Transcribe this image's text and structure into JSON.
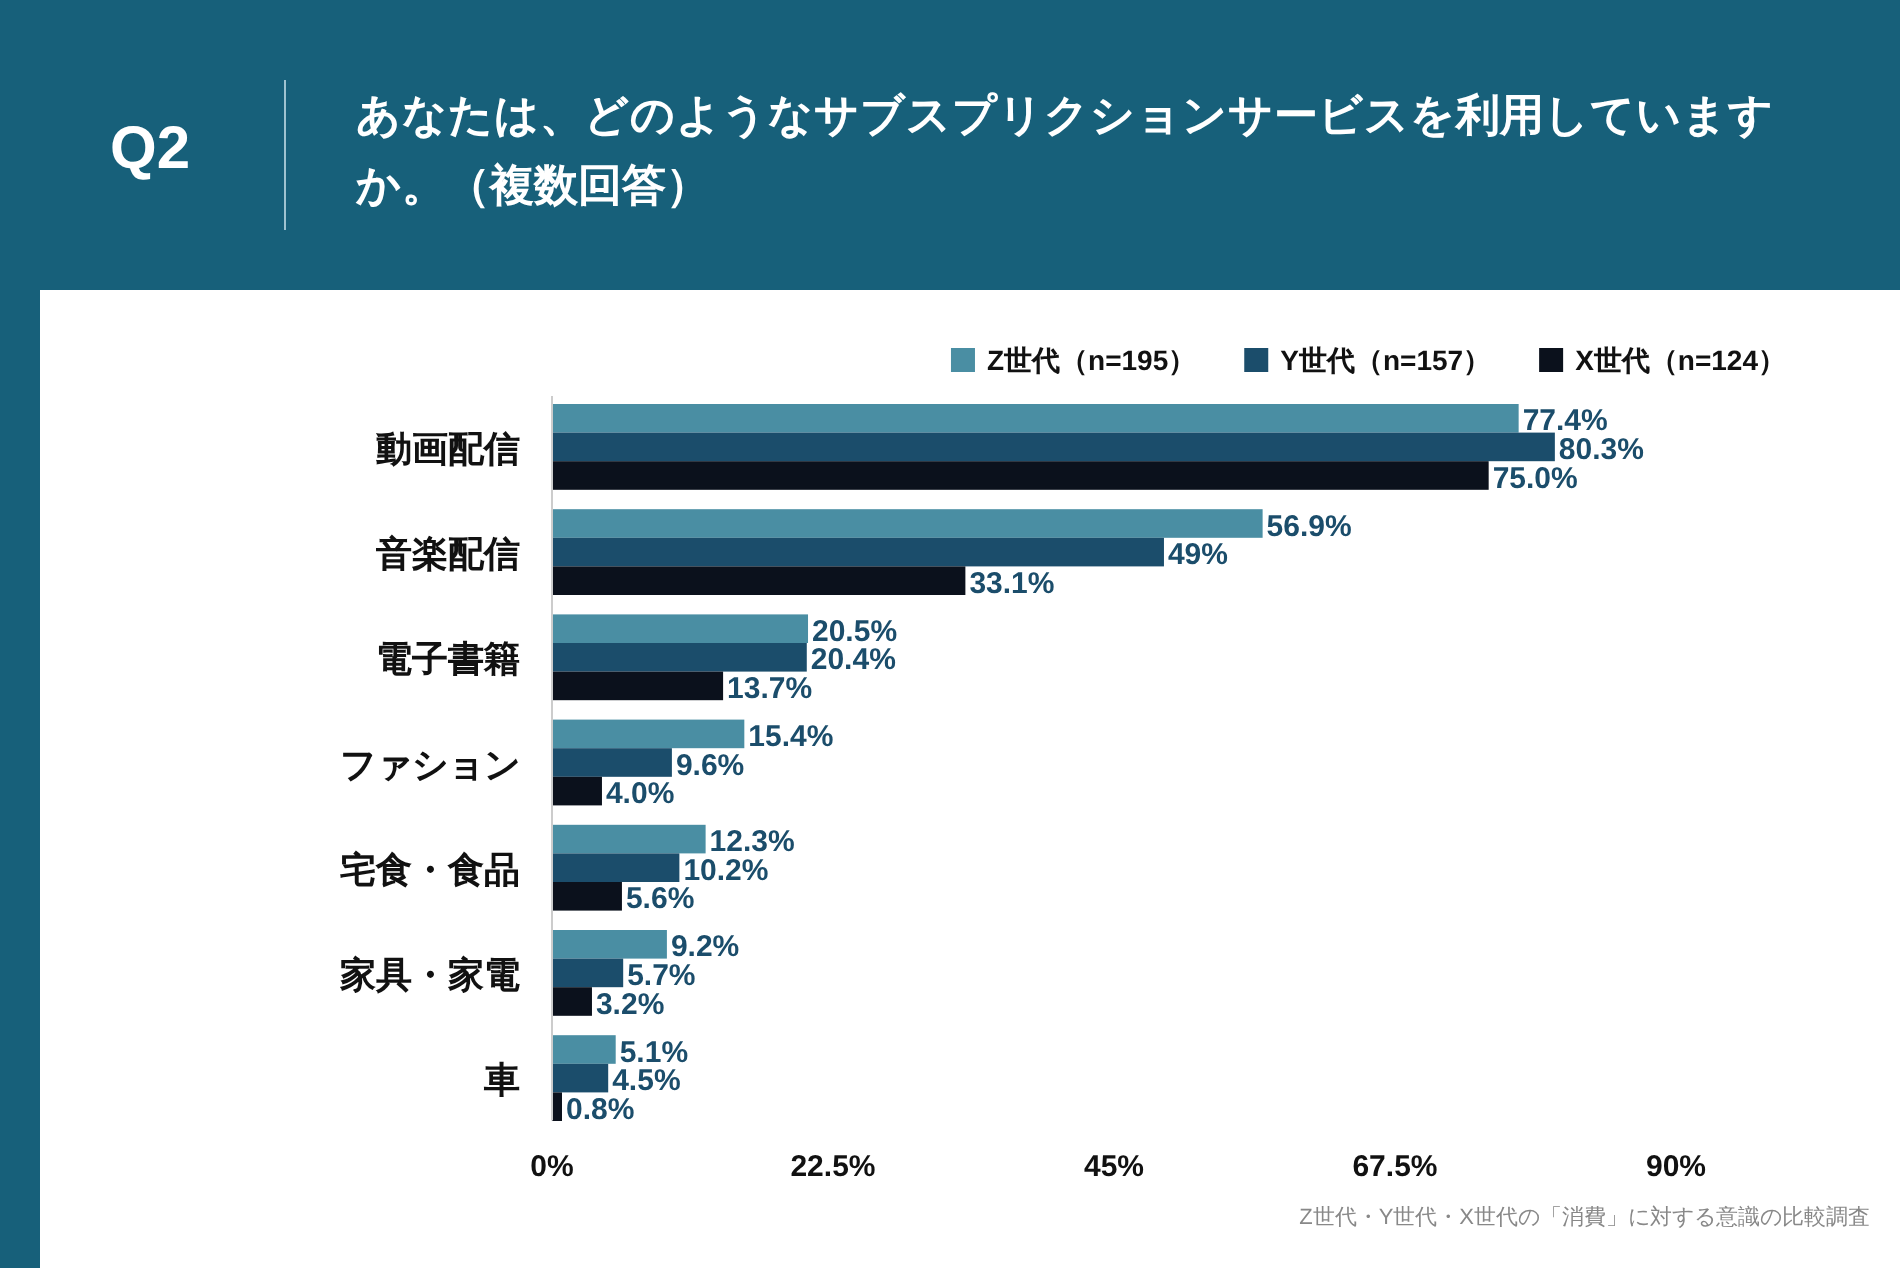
{
  "chart_data": {
    "type": "bar",
    "orientation": "horizontal",
    "title": "あなたは、どのようなサブスプリクションサービスを利用していますか。（複数回答）",
    "categories": [
      "動画配信",
      "音楽配信",
      "電子書籍",
      "ファション",
      "宅食・食品",
      "家具・家電",
      "車"
    ],
    "series": [
      {
        "name": "Z世代（n=195）",
        "color": "#4a8ea3",
        "values": [
          77.4,
          56.9,
          20.5,
          15.4,
          12.3,
          9.2,
          5.1
        ],
        "value_labels": [
          "77.4%",
          "56.9%",
          "20.5%",
          "15.4%",
          "12.3%",
          "9.2%",
          "5.1%"
        ]
      },
      {
        "name": "Y世代（n=157）",
        "color": "#1b4d6b",
        "values": [
          80.3,
          49,
          20.4,
          9.6,
          10.2,
          5.7,
          4.5
        ],
        "value_labels": [
          "80.3%",
          "49%",
          "20.4%",
          "9.6%",
          "10.2%",
          "5.7%",
          "4.5%"
        ]
      },
      {
        "name": "X世代（n=124）",
        "color": "#0b111c",
        "values": [
          75.0,
          33.1,
          13.7,
          4.0,
          5.6,
          3.2,
          0.8
        ],
        "value_labels": [
          "75.0%",
          "33.1%",
          "13.7%",
          "4.0%",
          "5.6%",
          "3.2%",
          "0.8%"
        ]
      }
    ],
    "xlim": [
      0,
      90
    ],
    "xticks": [
      {
        "value": 0,
        "label": "0%"
      },
      {
        "value": 22.5,
        "label": "22.5%"
      },
      {
        "value": 45,
        "label": "45%"
      },
      {
        "value": 67.5,
        "label": "67.5%"
      },
      {
        "value": 90,
        "label": "90%"
      }
    ],
    "legend": "top right",
    "grid": false,
    "annotations": [
      "Q2",
      "Z世代・Y世代・X世代の「消費」に対する意識の比較調査"
    ]
  }
}
